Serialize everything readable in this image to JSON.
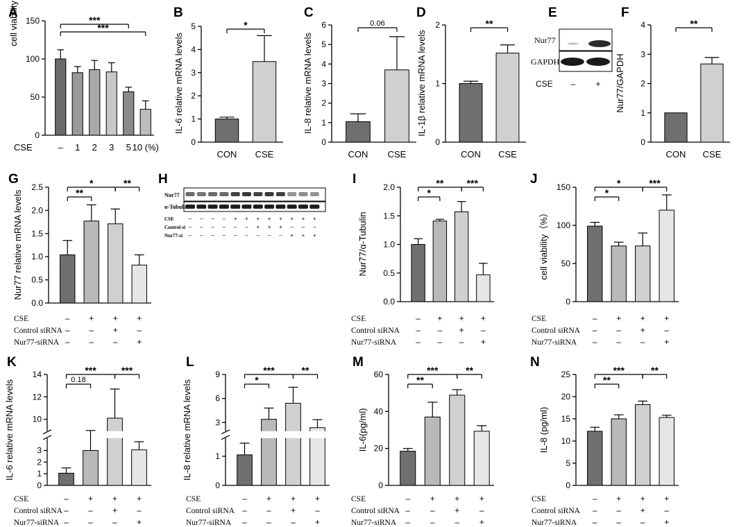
{
  "colors": {
    "dark": "#6f6f6f",
    "mid": "#b9b9b9",
    "light": "#d0d0d0",
    "lighter": "#e6e6e6",
    "ink": "#000000"
  },
  "cse_label": "CSE",
  "panel_letters": [
    "A",
    "B",
    "C",
    "D",
    "E",
    "F",
    "G",
    "H",
    "I",
    "J",
    "K",
    "L",
    "M",
    "N"
  ],
  "panel_E": {
    "labels": [
      "Nur77",
      "GAPDH"
    ],
    "cse_label": "CSE",
    "cse_marks": [
      "–",
      "+"
    ]
  },
  "panel_H": {
    "labels": [
      "Nur77",
      "α-Tubulin"
    ],
    "rows": [
      {
        "label": "CSE",
        "marks": [
          "–",
          "–",
          "–",
          "–",
          "+",
          "+",
          "+",
          "+",
          "+",
          "+",
          "+",
          "+"
        ]
      },
      {
        "label": "Control-si",
        "marks": [
          "–",
          "–",
          "–",
          "–",
          "–",
          "–",
          "+",
          "+",
          "+",
          "–",
          "–",
          "–"
        ]
      },
      {
        "label": "Nur77-si",
        "marks": [
          "–",
          "–",
          "–",
          "–",
          "–",
          "–",
          "–",
          "–",
          "–",
          "+",
          "+",
          "+"
        ]
      }
    ]
  },
  "chart_data": [
    {
      "id": "A",
      "type": "bar",
      "ylabel": "cell viability（%）",
      "ylim": [
        0,
        150
      ],
      "yticks": [
        "0",
        "50",
        "100",
        "150"
      ],
      "categories": [
        "–",
        "1",
        "2",
        "3",
        "5",
        "10 (%)"
      ],
      "values": [
        100,
        82,
        86,
        83,
        57,
        34
      ],
      "errors": [
        12,
        8,
        12,
        12,
        6,
        11
      ],
      "annotations": [
        {
          "from": 1,
          "to": 5,
          "text": "***"
        },
        {
          "from": 1,
          "to": 6,
          "text": "***"
        }
      ]
    },
    {
      "id": "B",
      "type": "bar",
      "ylabel": "IL-6 relative mRNA levels",
      "ylim": [
        0,
        5
      ],
      "yticks": [
        "0",
        "1",
        "2",
        "3",
        "4",
        "5"
      ],
      "categories": [
        "CON",
        "CSE"
      ],
      "values": [
        1.0,
        3.48
      ],
      "errors": [
        0.08,
        1.12
      ],
      "annotations": [
        {
          "from": 1,
          "to": 2,
          "text": "*"
        }
      ]
    },
    {
      "id": "C",
      "type": "bar",
      "ylabel": "IL-8 relative mRNA levels",
      "ylim": [
        0,
        6
      ],
      "yticks": [
        "0",
        "1",
        "2",
        "3",
        "4",
        "5",
        "6"
      ],
      "categories": [
        "CON",
        "CSE"
      ],
      "values": [
        1.05,
        3.7
      ],
      "errors": [
        0.4,
        1.7
      ],
      "annotations": [
        {
          "from": 1,
          "to": 2,
          "text": "0.06"
        }
      ]
    },
    {
      "id": "D",
      "type": "bar",
      "ylabel": "IL-1β relative mRNA levels",
      "ylim": [
        0,
        2
      ],
      "yticks": [
        "0",
        "1",
        "2"
      ],
      "categories": [
        "CON",
        "CSE"
      ],
      "values": [
        1.0,
        1.52
      ],
      "errors": [
        0.04,
        0.14
      ],
      "annotations": [
        {
          "from": 1,
          "to": 2,
          "text": "**"
        }
      ]
    },
    {
      "id": "F",
      "type": "bar",
      "ylabel": "Nur77/GAPDH",
      "ylim": [
        0,
        4
      ],
      "yticks": [
        "0",
        "1",
        "2",
        "3",
        "4"
      ],
      "categories": [
        "CON",
        "CSE"
      ],
      "values": [
        1.0,
        2.67
      ],
      "errors": [
        0,
        0.22
      ],
      "annotations": [
        {
          "from": 1,
          "to": 2,
          "text": "**"
        }
      ]
    },
    {
      "id": "G",
      "type": "bar",
      "ylabel": "Nur77 relative mRNA levels",
      "ylim": [
        0,
        2.5
      ],
      "yticks": [
        "0.0",
        "0.5",
        "1.0",
        "1.5",
        "2.0",
        "2.5"
      ],
      "values": [
        1.04,
        1.77,
        1.71,
        0.82
      ],
      "errors": [
        0.31,
        0.35,
        0.32,
        0.22
      ],
      "annotations": [
        {
          "from": 1,
          "to": 2,
          "text": "**"
        },
        {
          "from": 1,
          "to": 3,
          "text": "*"
        },
        {
          "from": 3,
          "to": 4,
          "text": "**"
        }
      ]
    },
    {
      "id": "I",
      "type": "bar",
      "ylabel": "Nur77/α-Tubulin",
      "ylim": [
        0,
        2
      ],
      "yticks": [
        "0.0",
        "0.5",
        "1.0",
        "1.5",
        "2.0"
      ],
      "values": [
        1.0,
        1.41,
        1.57,
        0.47
      ],
      "errors": [
        0.1,
        0.03,
        0.18,
        0.2
      ],
      "annotations": [
        {
          "from": 1,
          "to": 2,
          "text": "*"
        },
        {
          "from": 1,
          "to": 3,
          "text": "**"
        },
        {
          "from": 3,
          "to": 4,
          "text": "***"
        }
      ]
    },
    {
      "id": "J",
      "type": "bar",
      "ylabel": "cell viability（%）",
      "ylim": [
        0,
        150
      ],
      "yticks": [
        "0",
        "50",
        "100",
        "150"
      ],
      "values": [
        99,
        73,
        73,
        120
      ],
      "errors": [
        5,
        5,
        17,
        20
      ],
      "annotations": [
        {
          "from": 1,
          "to": 2,
          "text": "*"
        },
        {
          "from": 1,
          "to": 3,
          "text": "*"
        },
        {
          "from": 3,
          "to": 4,
          "text": "***"
        }
      ]
    },
    {
      "id": "K",
      "type": "bar",
      "ylabel": "IL-6 relative mRNA levels",
      "ylim": [
        0,
        14
      ],
      "axis_break": {
        "low": [
          0,
          4
        ],
        "high": [
          9,
          14
        ]
      },
      "yticks": [
        "0",
        "1",
        "2",
        "3",
        "10",
        "12",
        "14"
      ],
      "values": [
        1.05,
        3.0,
        10.1,
        3.05
      ],
      "errors": [
        0.45,
        1.3,
        2.6,
        0.7
      ],
      "annotations": [
        {
          "from": 1,
          "to": 2,
          "text": "0.18"
        },
        {
          "from": 1,
          "to": 3,
          "text": "***"
        },
        {
          "from": 3,
          "to": 4,
          "text": "***"
        }
      ]
    },
    {
      "id": "L",
      "type": "bar",
      "ylabel": "IL-8 relative mRNA levels",
      "ylim": [
        0,
        9
      ],
      "axis_break": {
        "low": [
          0,
          1.6
        ],
        "high": [
          2,
          9
        ]
      },
      "yticks": [
        "0",
        "1",
        "3",
        "6",
        "9"
      ],
      "values": [
        1.05,
        3.4,
        5.4,
        2.35
      ],
      "errors": [
        0.4,
        1.4,
        2.0,
        1.0
      ],
      "annotations": [
        {
          "from": 1,
          "to": 2,
          "text": "*"
        },
        {
          "from": 1,
          "to": 3,
          "text": "***"
        },
        {
          "from": 3,
          "to": 4,
          "text": "**"
        }
      ]
    },
    {
      "id": "M",
      "type": "bar",
      "ylabel": "IL-6(pg/ml)",
      "ylim": [
        0,
        60
      ],
      "yticks": [
        "0",
        "20",
        "40",
        "60"
      ],
      "values": [
        18.5,
        37,
        48.8,
        29.3
      ],
      "errors": [
        1.5,
        8,
        3,
        3
      ],
      "annotations": [
        {
          "from": 1,
          "to": 2,
          "text": "**"
        },
        {
          "from": 1,
          "to": 3,
          "text": "***"
        },
        {
          "from": 3,
          "to": 4,
          "text": "**"
        }
      ]
    },
    {
      "id": "N",
      "type": "bar",
      "ylabel": "IL-8 (pg/ml)",
      "ylim": [
        0,
        25
      ],
      "yticks": [
        "0",
        "5",
        "10",
        "15",
        "20",
        "25"
      ],
      "values": [
        12.2,
        15,
        18.2,
        15.3
      ],
      "errors": [
        0.9,
        0.9,
        0.8,
        0.5
      ],
      "annotations": [
        {
          "from": 1,
          "to": 2,
          "text": "**"
        },
        {
          "from": 1,
          "to": 3,
          "text": "***"
        },
        {
          "from": 3,
          "to": 4,
          "text": "**"
        }
      ]
    }
  ],
  "treatment_table": {
    "rows": [
      {
        "label": "CSE",
        "marks": [
          "–",
          "+",
          "+",
          "+"
        ]
      },
      {
        "label": "Control siRNA",
        "marks": [
          "–",
          "–",
          "+",
          "–"
        ]
      },
      {
        "label": "Nur77-siRNA",
        "marks": [
          "–",
          "–",
          "–",
          "+"
        ]
      }
    ]
  }
}
